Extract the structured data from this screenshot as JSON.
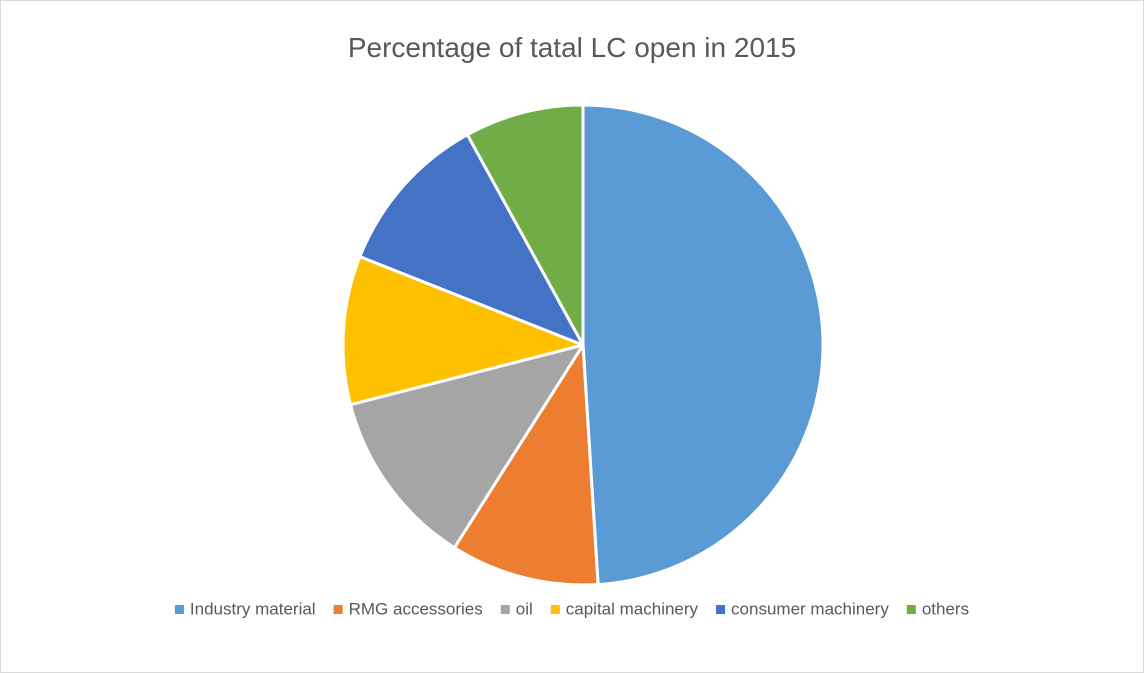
{
  "chart_data": {
    "type": "pie",
    "title": "Percentage of tatal LC open in 2015",
    "categories": [
      "Industry material",
      "RMG accessories",
      "oil",
      "capital machinery",
      "consumer machinery",
      "others"
    ],
    "values": [
      49,
      10,
      12,
      10,
      11,
      8
    ],
    "colors": [
      "#5b9bd5",
      "#ed7d31",
      "#a5a5a5",
      "#ffc000",
      "#4472c4",
      "#70ad47"
    ],
    "legend": "bottom"
  }
}
